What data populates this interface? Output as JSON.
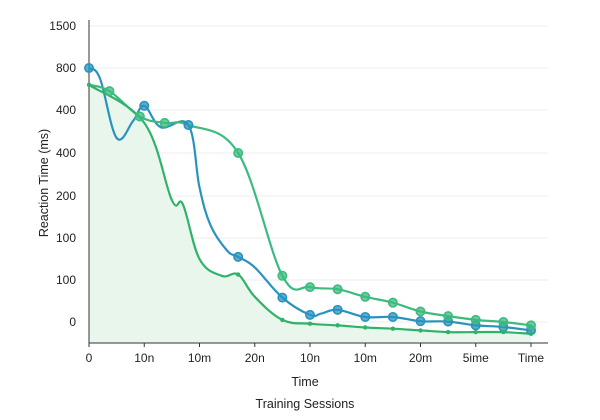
{
  "chart_data": {
    "type": "line",
    "xlabel": "Time",
    "caption": "Training Sessions",
    "ylabel": "Reaction Time (ms)",
    "y_tick_labels": [
      "1500",
      "800",
      "400",
      "400",
      "200",
      "100",
      "100",
      "0"
    ],
    "x_tick_labels": [
      "0",
      "10n",
      "10m",
      "20n",
      "10n",
      "10m",
      "20m",
      "5ime",
      "Time"
    ],
    "grid": "horizontal",
    "legend": "none",
    "colors": {
      "teal_series": "#2a93bd",
      "green_series": "#3dbb7f",
      "dark_green_series": "#2fb36a",
      "area_fill": "#e9f6ec"
    },
    "series": [
      {
        "color_key": "teal_series",
        "marker": "large",
        "x": [
          0,
          0.2,
          0.5,
          0.8,
          1.0,
          1.3,
          1.8,
          2.0,
          2.2,
          2.5,
          2.7,
          3.0,
          3.5,
          4.0,
          4.2,
          4.5,
          5.0,
          5.5,
          6.0,
          6.5,
          7.0,
          7.5,
          8.0
        ],
        "y": [
          800,
          750,
          470,
          550,
          620,
          520,
          530,
          320,
          230,
          170,
          155,
          130,
          58,
          17,
          20,
          29,
          12,
          12,
          2,
          1,
          -8,
          -12,
          -20
        ],
        "marker_x": [
          0,
          1.0,
          1.8,
          2.7,
          3.5,
          4.0,
          4.5,
          5.0,
          5.5,
          6.0,
          6.5,
          7.0,
          7.5,
          8.0
        ],
        "marker_y": [
          800,
          620,
          530,
          155,
          58,
          17,
          29,
          12,
          12,
          2,
          1,
          -8,
          -12,
          -20
        ]
      },
      {
        "color_key": "green_series",
        "marker": "large",
        "x": [
          0,
          0.37,
          0.92,
          1.37,
          1.8,
          2.7,
          3.5,
          4.0,
          4.5,
          5.0,
          5.5,
          6.0,
          6.5,
          7.0,
          7.5,
          8.0
        ],
        "y": [
          720,
          690,
          570,
          540,
          530,
          400,
          110,
          83,
          78,
          60,
          46,
          25,
          14,
          5,
          0,
          -8
        ],
        "marker_x": [
          0.37,
          0.92,
          1.37,
          2.7,
          3.5,
          4.0,
          4.5,
          5.0,
          5.5,
          6.0,
          6.5,
          7.0,
          7.5,
          8.0
        ],
        "marker_y": [
          690,
          570,
          540,
          400,
          110,
          83,
          78,
          60,
          46,
          25,
          14,
          5,
          0,
          -8
        ]
      },
      {
        "color_key": "dark_green_series",
        "marker": "small",
        "area": true,
        "x": [
          0,
          1.0,
          1.5,
          1.7,
          2.0,
          2.4,
          2.7,
          3.0,
          3.5,
          4.0,
          4.5,
          5.0,
          5.5,
          6.0,
          6.5,
          7.0,
          7.5,
          8.0
        ],
        "y": [
          720,
          540,
          290,
          280,
          150,
          110,
          113,
          60,
          5,
          -4,
          -8,
          -13,
          -16,
          -20,
          -24,
          -24,
          -24,
          -28
        ],
        "marker_x": [
          0,
          2.7,
          3.5,
          4.0,
          4.5,
          5.0,
          5.5,
          6.0,
          6.5,
          7.0,
          7.5,
          8.0
        ],
        "marker_y": [
          720,
          113,
          5,
          -4,
          -8,
          -13,
          -16,
          -20,
          -24,
          -24,
          -24,
          -28
        ]
      }
    ]
  }
}
